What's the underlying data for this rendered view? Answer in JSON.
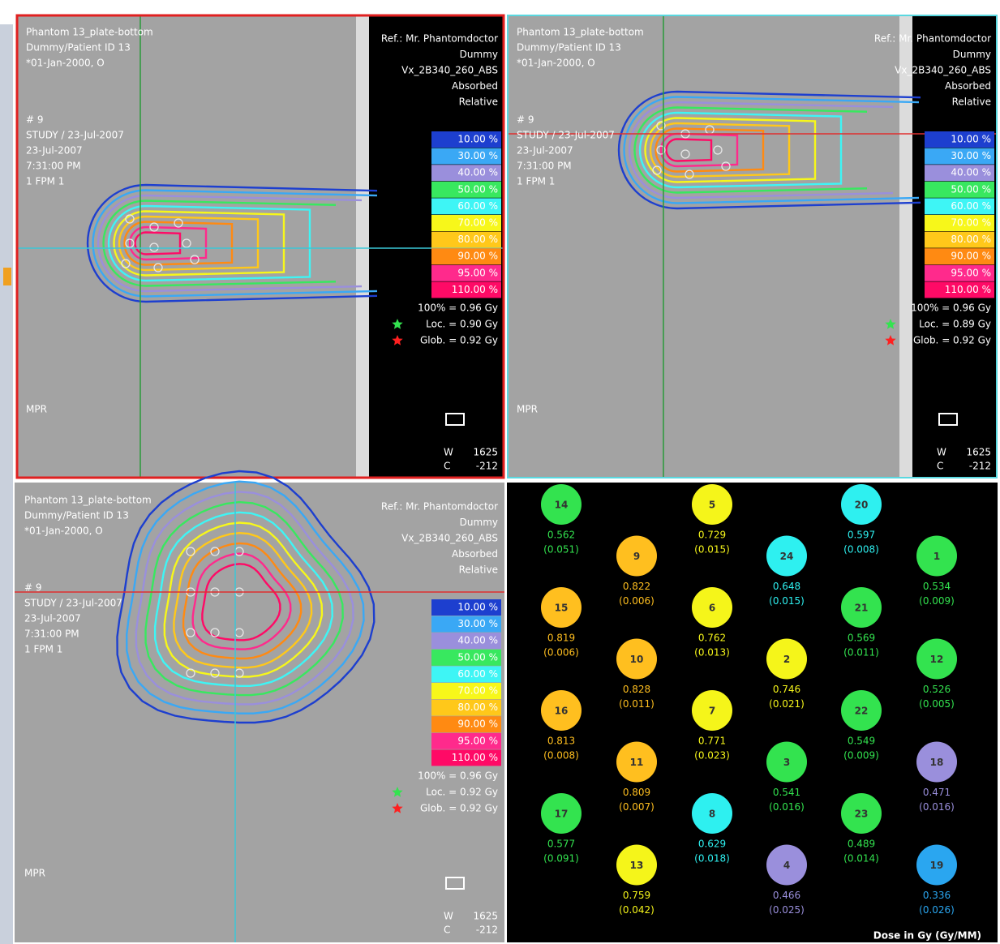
{
  "viewports": [
    {
      "patient": [
        "Phantom 13_plate-bottom",
        "Dummy/Patient ID 13",
        "*01-Jan-2000, O"
      ],
      "study": [
        "# 9",
        "STUDY / 23-Jul-2007",
        "23-Jul-2007",
        "7:31:00 PM",
        "1 FPM 1"
      ],
      "ref": [
        "Ref.: Mr. Phantomdoctor",
        "Dummy",
        "Vx_2B340_260_ABS",
        "Absorbed",
        "Relative"
      ],
      "dose": [
        "100% = 0.96 Gy",
        "Loc. = 0.90 Gy",
        "Glob. = 0.92 Gy"
      ],
      "mode": "MPR",
      "window": [
        "W",
        "1625"
      ],
      "center": [
        "C",
        "-212"
      ]
    },
    {
      "patient": [
        "Phantom 13_plate-bottom",
        "Dummy/Patient ID 13",
        "*01-Jan-2000, O"
      ],
      "study": [
        "# 9",
        "STUDY / 23-Jul-2007",
        "23-Jul-2007",
        "7:31:00 PM",
        "1 FPM 1"
      ],
      "ref": [
        "Ref.: Mr. Phantomdoctor",
        "Dummy",
        "Vx_2B340_260_ABS",
        "Absorbed",
        "Relative"
      ],
      "dose": [
        "100% = 0.96 Gy",
        "Loc. = 0.89 Gy",
        "Glob. = 0.92 Gy"
      ],
      "mode": "MPR",
      "window": [
        "W",
        "1625"
      ],
      "center": [
        "C",
        "-212"
      ]
    },
    {
      "patient": [
        "Phantom 13_plate-bottom",
        "Dummy/Patient ID 13",
        "*01-Jan-2000, O"
      ],
      "study": [
        "# 9",
        "STUDY / 23-Jul-2007",
        "23-Jul-2007",
        "7:31:00 PM",
        "1 FPM 1"
      ],
      "ref": [
        "Ref.: Mr. Phantomdoctor",
        "Dummy",
        "Vx_2B340_260_ABS",
        "Absorbed",
        "Relative"
      ],
      "dose": [
        "100% = 0.96 Gy",
        "Loc. = 0.92 Gy",
        "Glob. = 0.92 Gy"
      ],
      "mode": "MPR",
      "window": [
        "W",
        "1625"
      ],
      "center": [
        "C",
        "-212"
      ]
    }
  ],
  "isodose": [
    {
      "label": "10.00 %",
      "color": "#1d3fcf"
    },
    {
      "label": "30.00 %",
      "color": "#3aa8f5"
    },
    {
      "label": "40.00 %",
      "color": "#9a8fdc"
    },
    {
      "label": "50.00 %",
      "color": "#38e85f"
    },
    {
      "label": "60.00 %",
      "color": "#3ef5f5"
    },
    {
      "label": "70.00 %",
      "color": "#f7f71a"
    },
    {
      "label": "80.00 %",
      "color": "#ffc81a"
    },
    {
      "label": "90.00 %",
      "color": "#ff8a12"
    },
    {
      "label": "95.00 %",
      "color": "#ff2a8c"
    },
    {
      "label": "110.00 %",
      "color": "#ff0a66"
    }
  ],
  "detectors": [
    {
      "id": "14",
      "dose": 0.562,
      "uncertainty": "(0.051)",
      "color": "#33e34f"
    },
    {
      "id": "5",
      "dose": 0.729,
      "uncertainty": "(0.015)",
      "color": "#f5f51a"
    },
    {
      "id": "20",
      "dose": 0.597,
      "uncertainty": "(0.008)",
      "color": "#2ef0f0"
    },
    {
      "id": "9",
      "dose": 0.822,
      "uncertainty": "(0.006)",
      "color": "#ffbf1f"
    },
    {
      "id": "24",
      "dose": 0.648,
      "uncertainty": "(0.015)",
      "color": "#2ef0f0"
    },
    {
      "id": "1",
      "dose": 0.534,
      "uncertainty": "(0.009)",
      "color": "#33e34f"
    },
    {
      "id": "15",
      "dose": 0.819,
      "uncertainty": "(0.006)",
      "color": "#ffbf1f"
    },
    {
      "id": "6",
      "dose": 0.762,
      "uncertainty": "(0.013)",
      "color": "#f5f51a"
    },
    {
      "id": "21",
      "dose": 0.569,
      "uncertainty": "(0.011)",
      "color": "#33e34f"
    },
    {
      "id": "10",
      "dose": 0.828,
      "uncertainty": "(0.011)",
      "color": "#ffbf1f"
    },
    {
      "id": "2",
      "dose": 0.746,
      "uncertainty": "(0.021)",
      "color": "#f5f51a"
    },
    {
      "id": "12",
      "dose": 0.526,
      "uncertainty": "(0.005)",
      "color": "#33e34f"
    },
    {
      "id": "16",
      "dose": 0.813,
      "uncertainty": "(0.008)",
      "color": "#ffbf1f"
    },
    {
      "id": "7",
      "dose": 0.771,
      "uncertainty": "(0.023)",
      "color": "#f5f51a"
    },
    {
      "id": "22",
      "dose": 0.549,
      "uncertainty": "(0.009)",
      "color": "#33e34f"
    },
    {
      "id": "11",
      "dose": 0.809,
      "uncertainty": "(0.007)",
      "color": "#ffbf1f"
    },
    {
      "id": "3",
      "dose": 0.541,
      "uncertainty": "(0.016)",
      "color": "#33e34f"
    },
    {
      "id": "18",
      "dose": 0.471,
      "uncertainty": "(0.016)",
      "color": "#9a8fdc"
    },
    {
      "id": "17",
      "dose": 0.577,
      "uncertainty": "(0.091)",
      "color": "#33e34f"
    },
    {
      "id": "8",
      "dose": 0.629,
      "uncertainty": "(0.018)",
      "color": "#2ef0f0"
    },
    {
      "id": "23",
      "dose": 0.489,
      "uncertainty": "(0.014)",
      "color": "#33e34f"
    },
    {
      "id": "13",
      "dose": 0.759,
      "uncertainty": "(0.042)",
      "color": "#f5f51a"
    },
    {
      "id": "4",
      "dose": 0.466,
      "uncertainty": "(0.025)",
      "color": "#9a8fdc"
    },
    {
      "id": "19",
      "dose": 0.336,
      "uncertainty": "(0.026)",
      "color": "#2aa6f0"
    }
  ],
  "footer": "Dose in Gy (Gy/MM)"
}
